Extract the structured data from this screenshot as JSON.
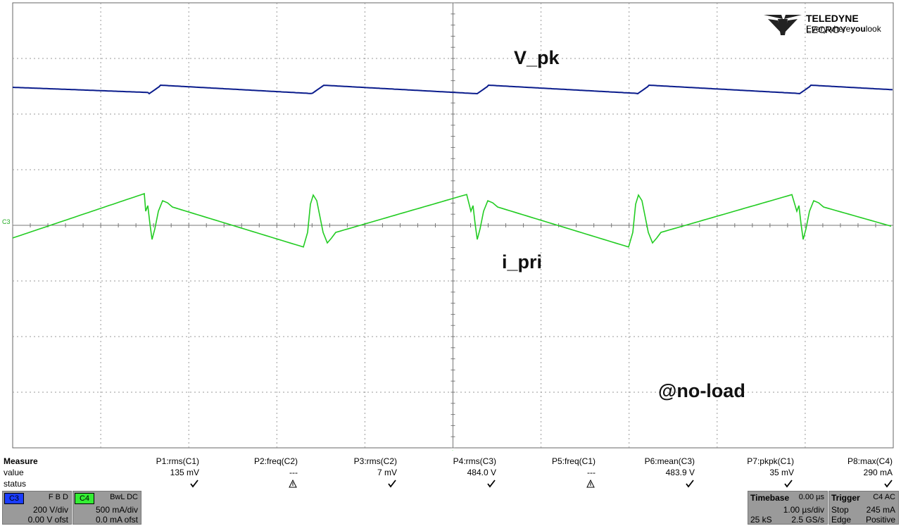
{
  "logo": {
    "brand_bold": "TELEDYNE",
    "brand_light": " LECROY",
    "tagline_pre": "Everywhere",
    "tagline_bold": "you",
    "tagline_post": "look"
  },
  "annotations": {
    "v_pk": "V_pk",
    "i_pri": "i_pri",
    "no_load": "@no-load"
  },
  "channel_marker": "C3",
  "colors": {
    "trace_c1": "#0a1c8c",
    "trace_c3": "#22cc22",
    "grid": "#9a9a9a",
    "panel_grey": "#9a9a9a"
  },
  "measure": {
    "header": "Measure",
    "row_value": "value",
    "row_status": "status",
    "params": [
      {
        "name": "P1:rms(C1)",
        "value": "135 mV",
        "status": "check"
      },
      {
        "name": "P2:freq(C2)",
        "value": "---",
        "status": "warning"
      },
      {
        "name": "P3:rms(C2)",
        "value": "7 mV",
        "status": "check"
      },
      {
        "name": "P4:rms(C3)",
        "value": "484.0 V",
        "status": "check"
      },
      {
        "name": "P5:freq(C1)",
        "value": "---",
        "status": "warning"
      },
      {
        "name": "P6:mean(C3)",
        "value": "483.9 V",
        "status": "check"
      },
      {
        "name": "P7:pkpk(C1)",
        "value": "35 mV",
        "status": "check"
      },
      {
        "name": "P8:max(C4)",
        "value": "290 mA",
        "status": "check"
      }
    ]
  },
  "channels": [
    {
      "tag": "C3",
      "flags": "F B D",
      "scale": "200 V/div",
      "offset": "0.00 V ofst",
      "color": "#1a3cff"
    },
    {
      "tag": "C4",
      "flags": "BwL DC",
      "scale": "500 mA/div",
      "offset": "0.0 mA ofst",
      "color": "#33ee33"
    }
  ],
  "timebase": {
    "title": "Timebase",
    "delay": "0.00 µs",
    "per_div": "1.00 µs/div",
    "samples": "25 kS",
    "rate": "2.5 GS/s"
  },
  "trigger": {
    "title": "Trigger",
    "channel": "C4 AC",
    "mode": "Stop",
    "level": "245 mA",
    "type": "Edge",
    "slope": "Positive"
  }
}
